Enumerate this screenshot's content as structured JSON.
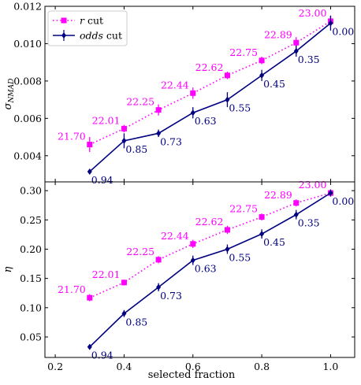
{
  "chart_data": {
    "type": "line",
    "xlabel": "selected fraction",
    "xlim": [
      0.17,
      1.07
    ],
    "xticks": [
      0.2,
      0.4,
      0.6,
      0.8,
      1.0
    ],
    "xtick_labels": [
      "0.2",
      "0.4",
      "0.6",
      "0.8",
      "1.0"
    ],
    "colors": {
      "r": "#ff00ff",
      "odds": "#000080"
    },
    "legend": {
      "location": "top-left",
      "entries": [
        {
          "label_var": "r",
          "label_rest": " cut"
        },
        {
          "label_var": "odds",
          "label_rest": " cut"
        }
      ]
    },
    "panels": [
      {
        "ylabel_main": "σ",
        "ylabel_sub": "NMAD",
        "ylim": [
          0.0026,
          0.012
        ],
        "yticks": [
          0.004,
          0.006,
          0.008,
          0.01,
          0.012
        ],
        "ytick_labels": [
          "0.004",
          "0.006",
          "0.008",
          "0.010",
          "0.012"
        ],
        "series": [
          {
            "name": "r cut",
            "x": [
              0.3,
              0.4,
              0.5,
              0.6,
              0.7,
              0.8,
              0.9,
              1.0
            ],
            "y": [
              0.0046,
              0.00545,
              0.00645,
              0.00735,
              0.0083,
              0.0091,
              0.01005,
              0.0112
            ],
            "err": [
              0.0004,
              0.0002,
              0.0003,
              0.0003,
              0.0002,
              0.0002,
              0.0003,
              0.0003
            ],
            "labels": [
              "21.70",
              "22.01",
              "22.25",
              "22.44",
              "22.62",
              "22.75",
              "22.89",
              "23.00"
            ]
          },
          {
            "name": "odds cut",
            "x": [
              0.3,
              0.4,
              0.5,
              0.6,
              0.7,
              0.8,
              0.9,
              1.0
            ],
            "y": [
              0.00315,
              0.0048,
              0.0052,
              0.0063,
              0.007,
              0.0083,
              0.0096,
              0.0111
            ],
            "err": [
              5e-05,
              0.0004,
              0.0002,
              0.0003,
              0.0004,
              0.0003,
              0.0003,
              0.0004
            ],
            "labels": [
              "0.94",
              "0.85",
              "0.73",
              "0.63",
              "0.55",
              "0.45",
              "0.35",
              "0.00"
            ]
          }
        ]
      },
      {
        "ylabel_main": "η",
        "ylabel_sub": "",
        "ylim": [
          0.015,
          0.315
        ],
        "yticks": [
          0.05,
          0.1,
          0.15,
          0.2,
          0.25,
          0.3
        ],
        "ytick_labels": [
          "0.05",
          "0.10",
          "0.15",
          "0.20",
          "0.25",
          "0.30"
        ],
        "series": [
          {
            "name": "r cut",
            "x": [
              0.3,
              0.4,
              0.5,
              0.6,
              0.7,
              0.8,
              0.9,
              1.0
            ],
            "y": [
              0.117,
              0.143,
              0.182,
              0.209,
              0.233,
              0.255,
              0.279,
              0.296
            ],
            "err": [
              0.006,
              0.005,
              0.006,
              0.007,
              0.007,
              0.006,
              0.006,
              0.006
            ],
            "labels": [
              "21.70",
              "22.01",
              "22.25",
              "22.44",
              "22.62",
              "22.75",
              "22.89",
              "23.00"
            ]
          },
          {
            "name": "odds cut",
            "x": [
              0.3,
              0.4,
              0.5,
              0.6,
              0.7,
              0.8,
              0.9,
              1.0
            ],
            "y": [
              0.033,
              0.09,
              0.135,
              0.181,
              0.2,
              0.226,
              0.259,
              0.296
            ],
            "err": [
              0.003,
              0.006,
              0.007,
              0.008,
              0.008,
              0.008,
              0.008,
              0.006
            ],
            "labels": [
              "0.94",
              "0.85",
              "0.73",
              "0.63",
              "0.55",
              "0.45",
              "0.35",
              "0.00"
            ]
          }
        ]
      }
    ]
  }
}
